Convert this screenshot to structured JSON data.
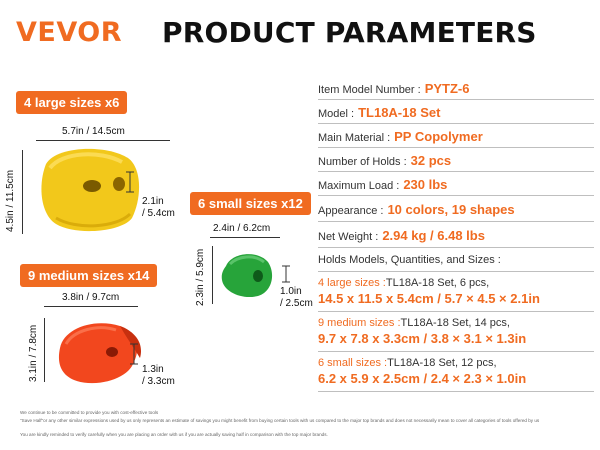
{
  "header": {
    "logo": "VEVOR",
    "title": "PRODUCT PARAMETERS"
  },
  "tags": {
    "large": "4 large sizes x6",
    "medium": "9 medium sizes x14",
    "small": "6 small sizes x12"
  },
  "dims": {
    "large_w": "5.7in / 14.5cm",
    "large_h": "4.5in / 11.5cm",
    "large_d1": "2.1in",
    "large_d2": "/ 5.4cm",
    "small_w": "2.4in / 6.2cm",
    "small_h": "2.3in / 5.9cm",
    "small_d1": "1.0in",
    "small_d2": "/ 2.5cm",
    "medium_w": "3.8in / 9.7cm",
    "medium_h": "3.1in / 7.8cm",
    "medium_d1": "1.3in",
    "medium_d2": "/ 3.3cm"
  },
  "holds": {
    "large_color": "#f2c81b",
    "small_color": "#27a43a",
    "medium_color": "#f2471e"
  },
  "specs": {
    "item_model": {
      "label": "Item Model Number :",
      "value": "PYTZ-6"
    },
    "model": {
      "label": "Model :",
      "value": "TL18A-18 Set"
    },
    "material": {
      "label": "Main Material :",
      "value": "PP Copolymer"
    },
    "holds": {
      "label": "Number of Holds :",
      "value": "32 pcs"
    },
    "load": {
      "label": "Maximum Load :",
      "value": "230 lbs"
    },
    "appearance": {
      "label": "Appearance :",
      "value": "10 colors, 19 shapes"
    },
    "weight": {
      "label": "Net Weight :",
      "value": "2.94 kg / 6.48 lbs"
    },
    "holds_models": "Holds Models, Quantities, and Sizes :",
    "large": {
      "label": "4 large sizes :",
      "note": "TL18A-18 Set, 6 pcs,",
      "size": "14.5 x 11.5 x 5.4cm / 5.7 × 4.5 × 2.1in"
    },
    "medium": {
      "label": "9 medium sizes :",
      "note": "TL18A-18 Set, 14 pcs,",
      "size": "9.7 x 7.8 x 3.3cm / 3.8 × 3.1 × 1.3in"
    },
    "small": {
      "label": "6 small sizes :",
      "note": "TL18A-18 Set, 12 pcs,",
      "size": "6.2 x 5.9 x 2.5cm / 2.4 × 2.3 × 1.0in"
    }
  },
  "footer": {
    "line1": "We continue to be committed to provide you with cost-effective tools",
    "line2": "\"Save Half\"or any other similar expressions used by us only represents an estimate of savings you might benefit from buying certain tools with us compared to the major top brands and does not necessarily mean to cover all categories of tools offered by us",
    "line3": "You are kindly reminded to verify carefully when you are placing an order with us if you are actually saving half in comparison with the top major brands."
  },
  "colors": {
    "accent": "#f06b21"
  }
}
